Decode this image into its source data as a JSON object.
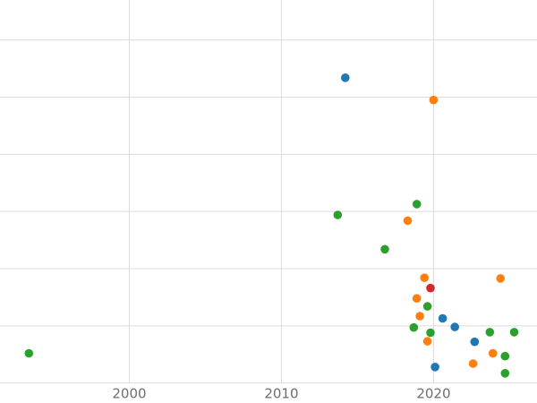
{
  "chart_data": {
    "type": "scatter",
    "title": "",
    "xlabel": "",
    "ylabel": "",
    "x_ticks": [
      {
        "value": 2000,
        "label": "2000"
      },
      {
        "value": 2010,
        "label": "2010"
      },
      {
        "value": 2020,
        "label": "2020"
      }
    ],
    "xlim": [
      1991.5,
      2026.8
    ],
    "ylim": [
      -0.35,
      6.7
    ],
    "grid": true,
    "y_gridline_values": [
      0,
      1,
      2,
      3,
      4,
      5,
      6
    ],
    "legend": "none",
    "marker_radius": 4.8,
    "grid_color": "#dcdcdc",
    "tick_label_color": "#6e6e6e",
    "tick_font_size": 15,
    "series": [
      {
        "name": "series-blue",
        "color": "#1f77b4",
        "points": [
          [
            2014.2,
            5.34
          ],
          [
            2020.6,
            1.13
          ],
          [
            2021.4,
            0.98
          ],
          [
            2022.7,
            0.72
          ],
          [
            2020.1,
            0.28
          ]
        ]
      },
      {
        "name": "series-orange",
        "color": "#ff7f0e",
        "points": [
          [
            2020.0,
            4.95
          ],
          [
            2018.3,
            2.84
          ],
          [
            2019.4,
            1.84
          ],
          [
            2024.4,
            1.83
          ],
          [
            2018.9,
            1.48
          ],
          [
            2019.1,
            1.17
          ],
          [
            2019.6,
            0.73
          ],
          [
            2023.9,
            0.52
          ],
          [
            2022.6,
            0.34
          ]
        ]
      },
      {
        "name": "series-green",
        "color": "#2ca02c",
        "points": [
          [
            1993.4,
            0.52
          ],
          [
            2013.7,
            2.94
          ],
          [
            2016.8,
            2.34
          ],
          [
            2018.9,
            3.13
          ],
          [
            2018.7,
            0.97
          ],
          [
            2019.6,
            1.34
          ],
          [
            2019.8,
            0.88
          ],
          [
            2023.7,
            0.89
          ],
          [
            2025.3,
            0.89
          ],
          [
            2024.7,
            0.47
          ],
          [
            2024.7,
            0.17
          ]
        ]
      },
      {
        "name": "series-red",
        "color": "#d62728",
        "points": [
          [
            2019.8,
            1.66
          ]
        ]
      }
    ]
  }
}
